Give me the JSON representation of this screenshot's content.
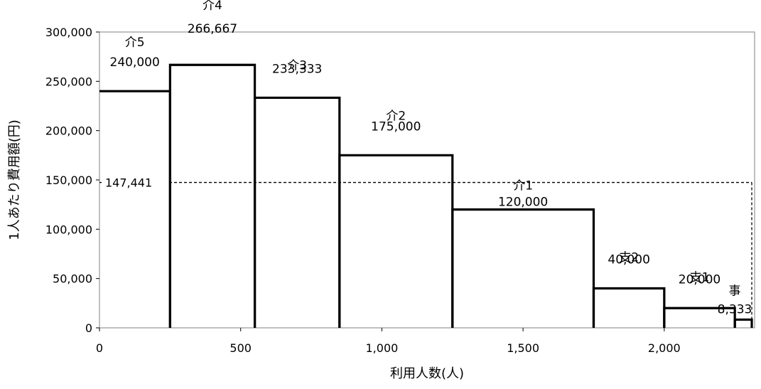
{
  "chart_data": {
    "type": "bar",
    "xlabel": "利用人数(人)",
    "ylabel": "1人あたり費用額(円)",
    "xlim": [
      0,
      2320
    ],
    "ylim": [
      0,
      300000
    ],
    "x_ticks": [
      "0",
      "500",
      "1,000",
      "1,500",
      "2,000"
    ],
    "x_tick_values": [
      0,
      500,
      1000,
      1500,
      2000
    ],
    "y_ticks": [
      "0",
      "50,000",
      "100,000",
      "150,000",
      "200,000",
      "250,000",
      "300,000"
    ],
    "y_tick_values": [
      0,
      50000,
      100000,
      150000,
      200000,
      250000,
      300000
    ],
    "grid": false,
    "bars": [
      {
        "category": "介5",
        "x_start": 0,
        "x_end": 250,
        "value": 240000,
        "value_label": "240,000"
      },
      {
        "category": "介4",
        "x_start": 250,
        "x_end": 550,
        "value": 266667,
        "value_label": "266,667"
      },
      {
        "category": "介3",
        "x_start": 550,
        "x_end": 850,
        "value": 233333,
        "value_label": "233,333"
      },
      {
        "category": "介2",
        "x_start": 850,
        "x_end": 1250,
        "value": 175000,
        "value_label": "175,000"
      },
      {
        "category": "介1",
        "x_start": 1250,
        "x_end": 1750,
        "value": 120000,
        "value_label": "120,000"
      },
      {
        "category": "支2",
        "x_start": 1750,
        "x_end": 2000,
        "value": 40000,
        "value_label": "40,000"
      },
      {
        "category": "支1",
        "x_start": 2000,
        "x_end": 2250,
        "value": 20000,
        "value_label": "20,000"
      },
      {
        "category": "事",
        "x_start": 2250,
        "x_end": 2310,
        "value": 8333,
        "value_label": "8,333"
      }
    ],
    "average": {
      "value": 147441,
      "label": "147,441",
      "x_end": 2310
    }
  }
}
